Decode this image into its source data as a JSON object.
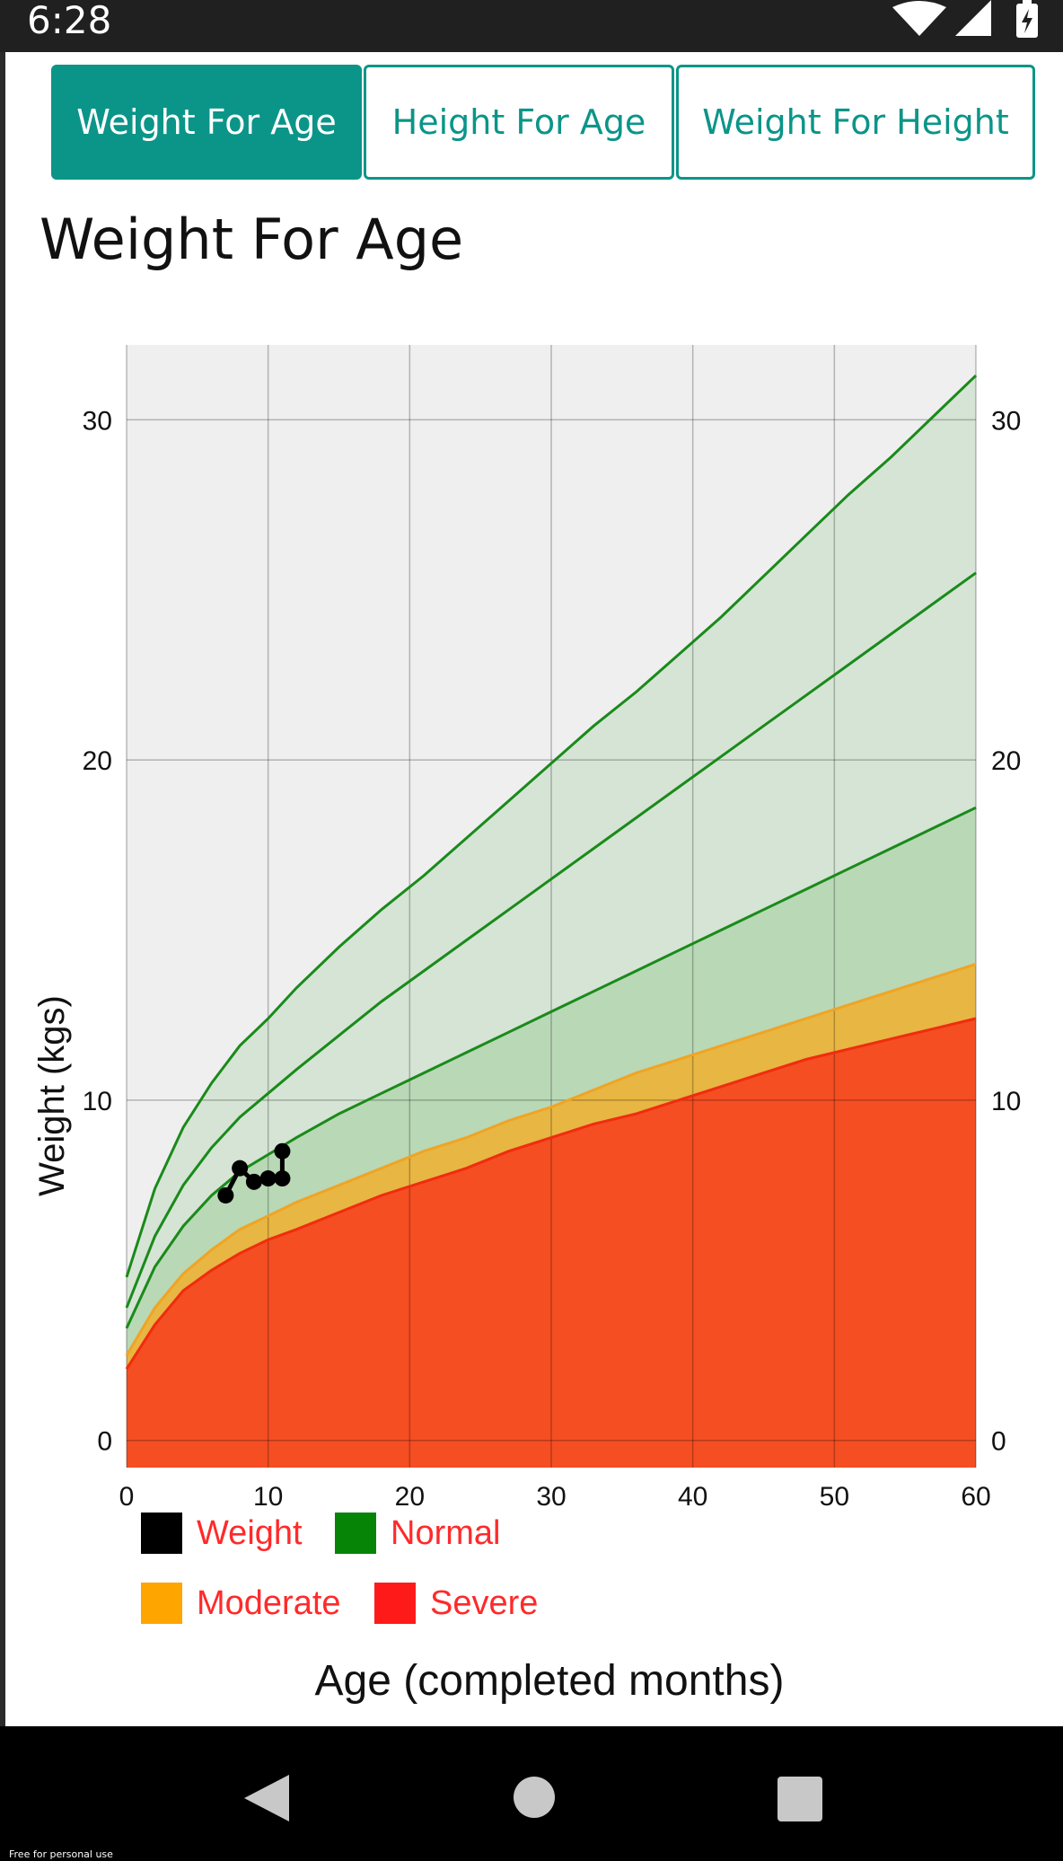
{
  "status_bar": {
    "time": "6:28",
    "icons": [
      "wifi-icon",
      "signal-icon",
      "battery-charging-icon"
    ]
  },
  "tabs": [
    {
      "label": "Weight For Age",
      "active": true
    },
    {
      "label": "Height For Age",
      "active": false
    },
    {
      "label": "Weight For Height",
      "active": false
    }
  ],
  "page_title": "Weight For Age",
  "colors": {
    "accent": "#0b9588",
    "severe": "#f44e22",
    "moderate": "#e8b642",
    "normal_line": "#1a8a1a",
    "normal_band_inner": "#b9d8b6",
    "normal_band_outer": "#d5e4d5",
    "plot_background": "#efefef",
    "legend_text": "#ff2a2a"
  },
  "chart_data": {
    "type": "area",
    "xlabel": "Age (completed months)",
    "ylabel": "Weight (kgs)",
    "xlim": [
      0,
      60
    ],
    "ylim": [
      -0.8,
      32.2
    ],
    "x_ticks": [
      "0",
      "10",
      "20",
      "30",
      "40",
      "50",
      "60"
    ],
    "y_ticks": [
      "0",
      "10",
      "20",
      "30"
    ],
    "x_tick_values": [
      0,
      10,
      20,
      30,
      40,
      50,
      60
    ],
    "y_tick_values": [
      0,
      10,
      20,
      30
    ],
    "grid": true,
    "age_months": [
      0,
      2,
      4,
      6,
      8,
      10,
      12,
      15,
      18,
      21,
      24,
      27,
      30,
      33,
      36,
      39,
      42,
      45,
      48,
      51,
      54,
      57,
      60
    ],
    "bands": {
      "severe_upper": [
        2.1,
        3.4,
        4.4,
        5.0,
        5.5,
        5.9,
        6.2,
        6.7,
        7.2,
        7.6,
        8.0,
        8.5,
        8.9,
        9.3,
        9.6,
        10.0,
        10.4,
        10.8,
        11.2,
        11.5,
        11.8,
        12.1,
        12.4
      ],
      "moderate_upper": [
        2.5,
        3.9,
        4.9,
        5.6,
        6.2,
        6.6,
        7.0,
        7.5,
        8.0,
        8.5,
        8.9,
        9.4,
        9.8,
        10.3,
        10.8,
        11.2,
        11.6,
        12.0,
        12.4,
        12.8,
        13.2,
        13.6,
        14.0
      ],
      "normal_lower": [
        3.3,
        5.1,
        6.3,
        7.2,
        7.9,
        8.4,
        8.9,
        9.6,
        10.2,
        10.8,
        11.4,
        12.0,
        12.6,
        13.2,
        13.8,
        14.4,
        15.0,
        15.6,
        16.2,
        16.8,
        17.4,
        18.0,
        18.6
      ],
      "normal_median": [
        3.9,
        6.0,
        7.5,
        8.6,
        9.5,
        10.2,
        10.9,
        11.9,
        12.9,
        13.8,
        14.7,
        15.6,
        16.5,
        17.4,
        18.3,
        19.2,
        20.1,
        21.0,
        21.9,
        22.8,
        23.7,
        24.6,
        25.5
      ],
      "normal_upper": [
        4.8,
        7.4,
        9.2,
        10.5,
        11.6,
        12.4,
        13.3,
        14.5,
        15.6,
        16.6,
        17.7,
        18.8,
        19.9,
        21.0,
        22.0,
        23.1,
        24.2,
        25.4,
        26.6,
        27.8,
        28.9,
        30.1,
        31.3
      ]
    },
    "series": [
      {
        "name": "Weight",
        "points": [
          {
            "x": 7,
            "y": 7.2
          },
          {
            "x": 8,
            "y": 8.0
          },
          {
            "x": 9,
            "y": 7.6
          },
          {
            "x": 10,
            "y": 7.7
          },
          {
            "x": 11,
            "y": 7.7
          },
          {
            "x": 11,
            "y": 8.5
          }
        ]
      }
    ],
    "legend": [
      {
        "label": "Weight",
        "color": "#000000"
      },
      {
        "label": "Normal",
        "color": "#068406"
      },
      {
        "label": "Moderate",
        "color": "#ffa500"
      },
      {
        "label": "Severe",
        "color": "#ff1a1a"
      }
    ],
    "legend_position": "bottom-left"
  },
  "nav_bar": {
    "icons": [
      "back-icon",
      "home-icon",
      "recents-icon"
    ]
  },
  "watermark": "Free for personal use"
}
